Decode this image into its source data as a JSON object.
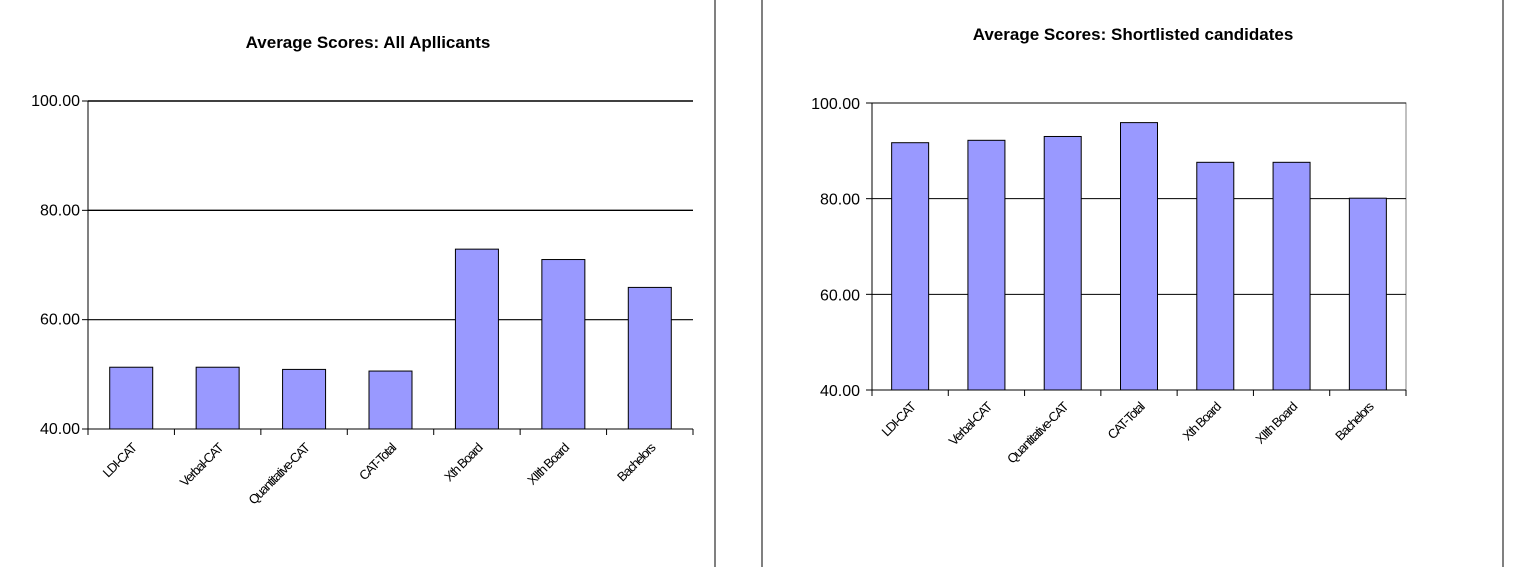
{
  "chart_data": [
    {
      "type": "bar",
      "title": "Average Scores: All Apllicants",
      "categories": [
        "LDI-CAT",
        "Verbal-CAT",
        "Quantitative-CAT",
        "CAT-Total",
        "Xth Board",
        "XIIth Board",
        "Bachelors"
      ],
      "values": [
        51.3,
        51.3,
        50.9,
        50.6,
        72.9,
        71.0,
        65.9
      ],
      "ylim": [
        40,
        100
      ],
      "yticks": [
        "40.00",
        "60.00",
        "80.00",
        "100.00"
      ],
      "xlabel": "",
      "ylabel": "",
      "grid": true,
      "bar_color": "#9999ff"
    },
    {
      "type": "bar",
      "title": "Average Scores: Shortlisted candidates",
      "categories": [
        "LDI-CAT",
        "Verbal-CAT",
        "Quantitative-CAT",
        "CAT-Total",
        "Xth Board",
        "XIIth Board",
        "Bachelors"
      ],
      "values": [
        91.7,
        92.2,
        93.0,
        95.9,
        87.6,
        87.6,
        80.1
      ],
      "ylim": [
        40,
        100
      ],
      "yticks": [
        "40.00",
        "60.00",
        "80.00",
        "100.00"
      ],
      "xlabel": "",
      "ylabel": "",
      "grid": true,
      "bar_color": "#9999ff"
    }
  ]
}
